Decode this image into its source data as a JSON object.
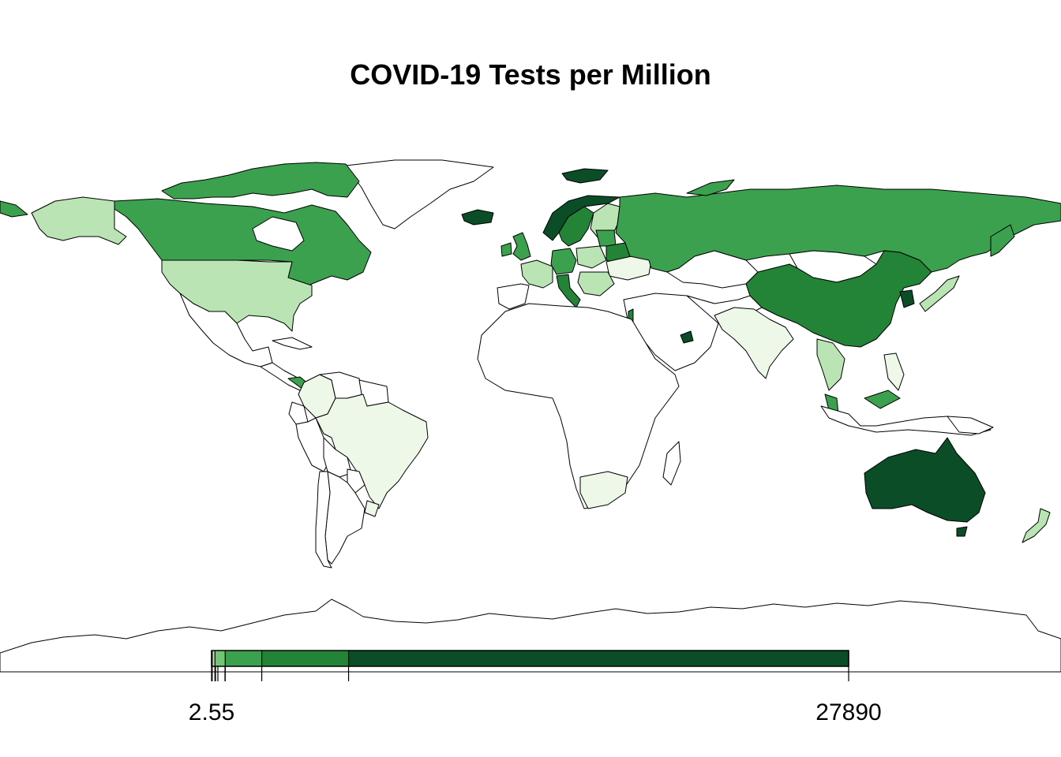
{
  "title": "COVID-19 Tests per Million",
  "palette": {
    "none": "#ffffff",
    "c1": "#edf8e9",
    "c2": "#bae4b3",
    "c3": "#74c476",
    "c4": "#3ba14f",
    "c5": "#238438",
    "c6": "#0b4d26"
  },
  "legend": {
    "min_label": "2.55",
    "max_label": "27890",
    "breaks": [
      2.55,
      30,
      150,
      600,
      2200,
      6000,
      27890
    ],
    "colors": [
      "#edf8e9",
      "#bae4b3",
      "#74c476",
      "#3ba14f",
      "#238438",
      "#0b4d26"
    ]
  }
}
